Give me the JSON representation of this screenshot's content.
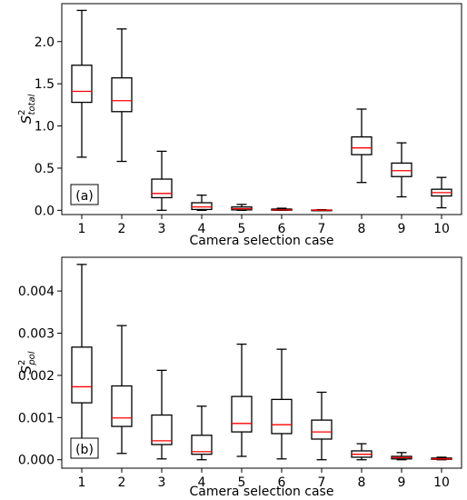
{
  "chart_data": [
    {
      "type": "box",
      "panel_label": "(a)",
      "xlabel": "Camera selection case",
      "ylabel_base": "S",
      "ylabel_sup": "2",
      "ylabel_sub": "total",
      "categories": [
        "1",
        "2",
        "3",
        "4",
        "5",
        "6",
        "7",
        "8",
        "9",
        "10"
      ],
      "ylim": [
        -0.05,
        2.45
      ],
      "yticks": [
        0.0,
        0.5,
        1.0,
        1.5,
        2.0
      ],
      "ytick_labels": [
        "0.0",
        "0.5",
        "1.0",
        "1.5",
        "2.0"
      ],
      "boxes": [
        {
          "whislo": 0.63,
          "q1": 1.28,
          "med": 1.41,
          "q3": 1.72,
          "whishi": 2.37
        },
        {
          "whislo": 0.58,
          "q1": 1.17,
          "med": 1.3,
          "q3": 1.57,
          "whishi": 2.15
        },
        {
          "whislo": 0.0,
          "q1": 0.15,
          "med": 0.2,
          "q3": 0.37,
          "whishi": 0.7
        },
        {
          "whislo": 0.0,
          "q1": 0.01,
          "med": 0.04,
          "q3": 0.09,
          "whishi": 0.18
        },
        {
          "whislo": 0.0,
          "q1": 0.005,
          "med": 0.02,
          "q3": 0.04,
          "whishi": 0.07
        },
        {
          "whislo": 0.0,
          "q1": 0.001,
          "med": 0.005,
          "q3": 0.015,
          "whishi": 0.025
        },
        {
          "whislo": 0.0,
          "q1": 0.0,
          "med": 0.002,
          "q3": 0.004,
          "whishi": 0.008
        },
        {
          "whislo": 0.33,
          "q1": 0.66,
          "med": 0.74,
          "q3": 0.87,
          "whishi": 1.2
        },
        {
          "whislo": 0.16,
          "q1": 0.4,
          "med": 0.47,
          "q3": 0.56,
          "whishi": 0.8
        },
        {
          "whislo": 0.03,
          "q1": 0.17,
          "med": 0.21,
          "q3": 0.25,
          "whishi": 0.39
        }
      ]
    },
    {
      "type": "box",
      "panel_label": "(b)",
      "xlabel": "Camera selection case",
      "ylabel_base": "S",
      "ylabel_sup": "2",
      "ylabel_sub": "pol",
      "categories": [
        "1",
        "2",
        "3",
        "4",
        "5",
        "6",
        "7",
        "8",
        "9",
        "10"
      ],
      "ylim": [
        -0.0002,
        0.0048
      ],
      "yticks": [
        0.0,
        0.001,
        0.002,
        0.003,
        0.004
      ],
      "ytick_labels": [
        "0.000",
        "0.001",
        "0.002",
        "0.003",
        "0.004"
      ],
      "boxes": [
        {
          "whislo": 0.00042,
          "q1": 0.00135,
          "med": 0.00173,
          "q3": 0.00267,
          "whishi": 0.00463
        },
        {
          "whislo": 0.00015,
          "q1": 0.00079,
          "med": 0.00099,
          "q3": 0.00175,
          "whishi": 0.00318
        },
        {
          "whislo": 2e-05,
          "q1": 0.00036,
          "med": 0.00045,
          "q3": 0.00106,
          "whishi": 0.00212
        },
        {
          "whislo": 0.0,
          "q1": 0.00013,
          "med": 0.00019,
          "q3": 0.00058,
          "whishi": 0.00127
        },
        {
          "whislo": 8e-05,
          "q1": 0.00066,
          "med": 0.00086,
          "q3": 0.0015,
          "whishi": 0.00274
        },
        {
          "whislo": 2e-05,
          "q1": 0.00062,
          "med": 0.00083,
          "q3": 0.00143,
          "whishi": 0.00262
        },
        {
          "whislo": 0.0,
          "q1": 0.00049,
          "med": 0.00066,
          "q3": 0.00094,
          "whishi": 0.0016
        },
        {
          "whislo": 0.0,
          "q1": 6e-05,
          "med": 0.00013,
          "q3": 0.00021,
          "whishi": 0.00038
        },
        {
          "whislo": 0.0,
          "q1": 2e-05,
          "med": 5e-05,
          "q3": 8e-05,
          "whishi": 0.00017
        },
        {
          "whislo": 0.0,
          "q1": 1e-05,
          "med": 2e-05,
          "q3": 4e-05,
          "whishi": 6e-05
        }
      ]
    }
  ],
  "style": {
    "box_color": "#000000",
    "median_color": "#ff0000",
    "axes_color": "#000000"
  }
}
